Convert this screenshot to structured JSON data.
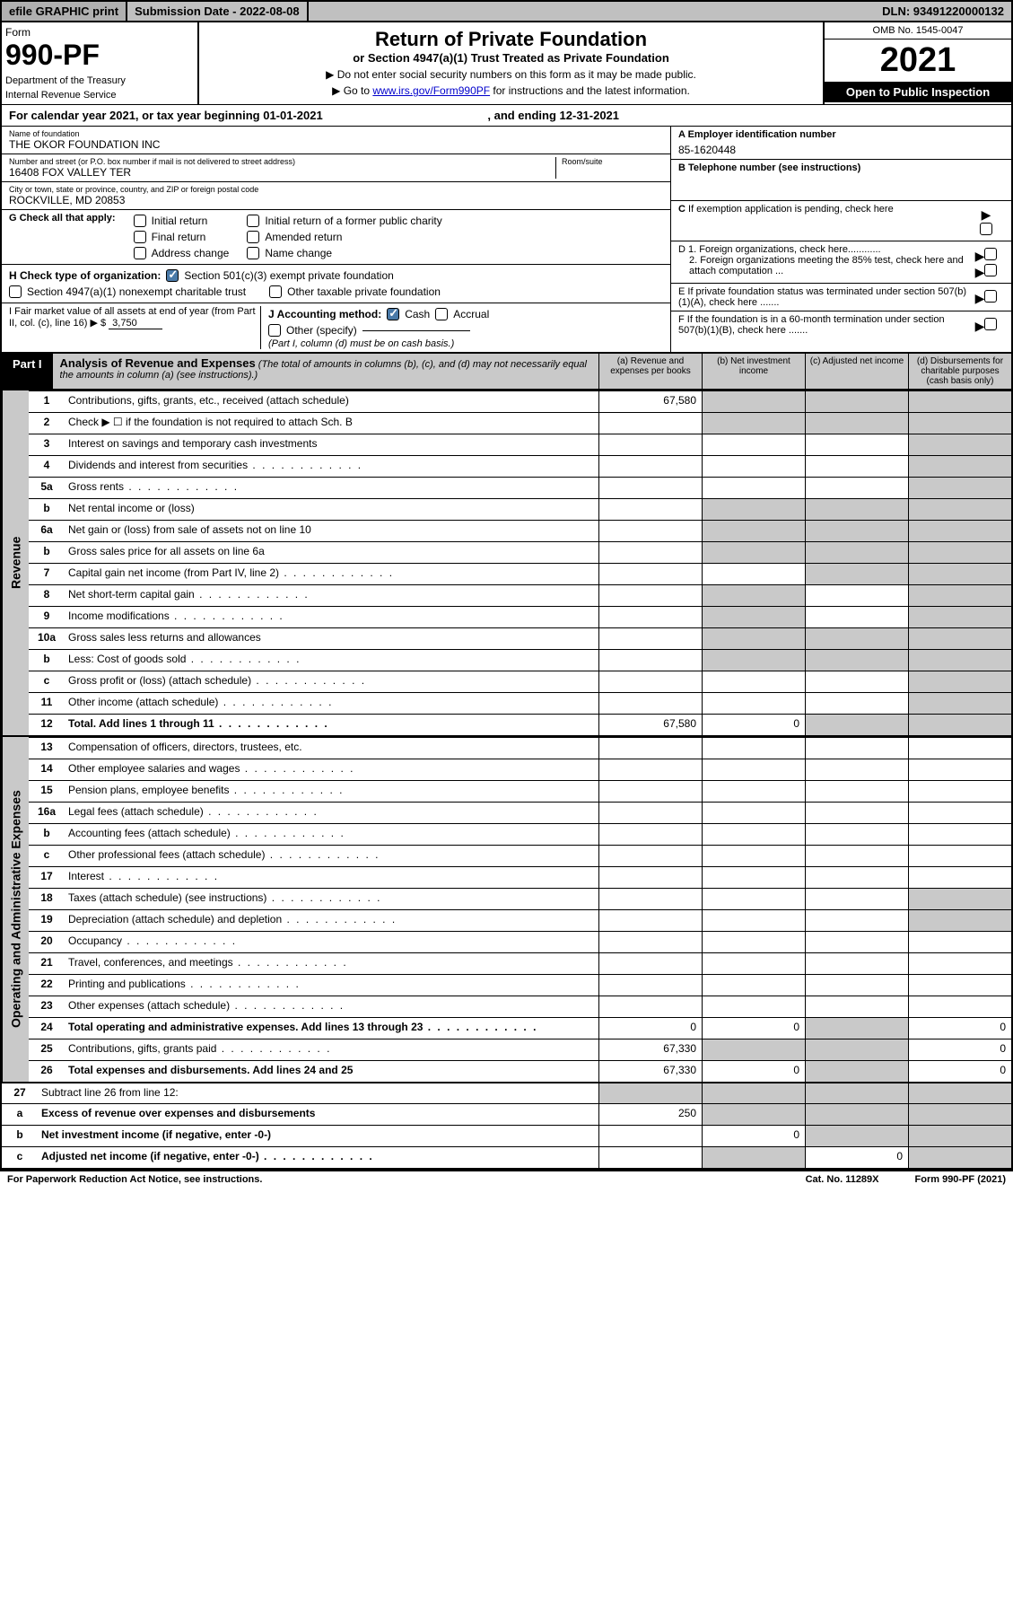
{
  "top": {
    "efile": "efile GRAPHIC print",
    "sub_label": "Submission Date - 2022-08-08",
    "dln": "DLN: 93491220000132"
  },
  "header": {
    "form_label": "Form",
    "form_num": "990-PF",
    "dept": "Department of the Treasury",
    "irs": "Internal Revenue Service",
    "title": "Return of Private Foundation",
    "subtitle": "or Section 4947(a)(1) Trust Treated as Private Foundation",
    "note1": "▶ Do not enter social security numbers on this form as it may be made public.",
    "note2": "▶ Go to www.irs.gov/Form990PF for instructions and the latest information.",
    "link": "www.irs.gov/Form990PF",
    "omb": "OMB No. 1545-0047",
    "year": "2021",
    "open": "Open to Public Inspection"
  },
  "cal": {
    "text": "For calendar year 2021, or tax year beginning 01-01-2021",
    "end": ", and ending 12-31-2021"
  },
  "info": {
    "name_lbl": "Name of foundation",
    "name": "THE OKOR FOUNDATION INC",
    "addr_lbl": "Number and street (or P.O. box number if mail is not delivered to street address)",
    "room_lbl": "Room/suite",
    "addr": "16408 FOX VALLEY TER",
    "city_lbl": "City or town, state or province, country, and ZIP or foreign postal code",
    "city": "ROCKVILLE, MD  20853",
    "ein_lbl": "A Employer identification number",
    "ein": "85-1620448",
    "tel_lbl": "B Telephone number (see instructions)",
    "c_lbl": "C If exemption application is pending, check here",
    "d1": "D 1. Foreign organizations, check here............",
    "d2": "2. Foreign organizations meeting the 85% test, check here and attach computation ...",
    "e_lbl": "E  If private foundation status was terminated under section 507(b)(1)(A), check here .......",
    "f_lbl": "F  If the foundation is in a 60-month termination under section 507(b)(1)(B), check here .......",
    "g": "G Check all that apply:",
    "g_opts": [
      "Initial return",
      "Initial return of a former public charity",
      "Final return",
      "Amended return",
      "Address change",
      "Name change"
    ],
    "h": "H Check type of organization:",
    "h1": "Section 501(c)(3) exempt private foundation",
    "h2": "Section 4947(a)(1) nonexempt charitable trust",
    "h3": "Other taxable private foundation",
    "i": "I Fair market value of all assets at end of year (from Part II, col. (c), line 16)",
    "i_val": "3,750",
    "j": "J Accounting method:",
    "j1": "Cash",
    "j2": "Accrual",
    "j3": "Other (specify)",
    "j_note": "(Part I, column (d) must be on cash basis.)"
  },
  "part1": {
    "tag": "Part I",
    "title": "Analysis of Revenue and Expenses",
    "desc": "(The total of amounts in columns (b), (c), and (d) may not necessarily equal the amounts in column (a) (see instructions).)",
    "cols": {
      "a": "(a)  Revenue and expenses per books",
      "b": "(b)  Net investment income",
      "c": "(c)  Adjusted net income",
      "d": "(d)  Disbursements for charitable purposes (cash basis only)"
    }
  },
  "sections": {
    "rev": "Revenue",
    "exp": "Operating and Administrative Expenses"
  },
  "rows": {
    "r1": {
      "n": "1",
      "d": "Contributions, gifts, grants, etc., received (attach schedule)",
      "a": "67,580"
    },
    "r2": {
      "n": "2",
      "d": "Check ▶ ☐ if the foundation is not required to attach Sch. B"
    },
    "r3": {
      "n": "3",
      "d": "Interest on savings and temporary cash investments"
    },
    "r4": {
      "n": "4",
      "d": "Dividends and interest from securities"
    },
    "r5a": {
      "n": "5a",
      "d": "Gross rents"
    },
    "r5b": {
      "n": "b",
      "d": "Net rental income or (loss)"
    },
    "r6a": {
      "n": "6a",
      "d": "Net gain or (loss) from sale of assets not on line 10"
    },
    "r6b": {
      "n": "b",
      "d": "Gross sales price for all assets on line 6a"
    },
    "r7": {
      "n": "7",
      "d": "Capital gain net income (from Part IV, line 2)"
    },
    "r8": {
      "n": "8",
      "d": "Net short-term capital gain"
    },
    "r9": {
      "n": "9",
      "d": "Income modifications"
    },
    "r10a": {
      "n": "10a",
      "d": "Gross sales less returns and allowances"
    },
    "r10b": {
      "n": "b",
      "d": "Less: Cost of goods sold"
    },
    "r10c": {
      "n": "c",
      "d": "Gross profit or (loss) (attach schedule)"
    },
    "r11": {
      "n": "11",
      "d": "Other income (attach schedule)"
    },
    "r12": {
      "n": "12",
      "d": "Total. Add lines 1 through 11",
      "a": "67,580",
      "b": "0"
    },
    "r13": {
      "n": "13",
      "d": "Compensation of officers, directors, trustees, etc."
    },
    "r14": {
      "n": "14",
      "d": "Other employee salaries and wages"
    },
    "r15": {
      "n": "15",
      "d": "Pension plans, employee benefits"
    },
    "r16a": {
      "n": "16a",
      "d": "Legal fees (attach schedule)"
    },
    "r16b": {
      "n": "b",
      "d": "Accounting fees (attach schedule)"
    },
    "r16c": {
      "n": "c",
      "d": "Other professional fees (attach schedule)"
    },
    "r17": {
      "n": "17",
      "d": "Interest"
    },
    "r18": {
      "n": "18",
      "d": "Taxes (attach schedule) (see instructions)"
    },
    "r19": {
      "n": "19",
      "d": "Depreciation (attach schedule) and depletion"
    },
    "r20": {
      "n": "20",
      "d": "Occupancy"
    },
    "r21": {
      "n": "21",
      "d": "Travel, conferences, and meetings"
    },
    "r22": {
      "n": "22",
      "d": "Printing and publications"
    },
    "r23": {
      "n": "23",
      "d": "Other expenses (attach schedule)"
    },
    "r24": {
      "n": "24",
      "d": "Total operating and administrative expenses. Add lines 13 through 23",
      "a": "0",
      "b": "0",
      "dd": "0"
    },
    "r25": {
      "n": "25",
      "d": "Contributions, gifts, grants paid",
      "a": "67,330",
      "dd": "0"
    },
    "r26": {
      "n": "26",
      "d": "Total expenses and disbursements. Add lines 24 and 25",
      "a": "67,330",
      "b": "0",
      "dd": "0"
    },
    "r27": {
      "n": "27",
      "d": "Subtract line 26 from line 12:"
    },
    "r27a": {
      "n": "a",
      "d": "Excess of revenue over expenses and disbursements",
      "a": "250"
    },
    "r27b": {
      "n": "b",
      "d": "Net investment income (if negative, enter -0-)",
      "b": "0"
    },
    "r27c": {
      "n": "c",
      "d": "Adjusted net income (if negative, enter -0-)",
      "c": "0"
    }
  },
  "footer": {
    "l": "For Paperwork Reduction Act Notice, see instructions.",
    "m": "Cat. No. 11289X",
    "r": "Form 990-PF (2021)"
  },
  "colors": {
    "grey": "#c9c9c9",
    "black": "#000000",
    "link": "#0000cc",
    "check": "#4a7aa8"
  }
}
